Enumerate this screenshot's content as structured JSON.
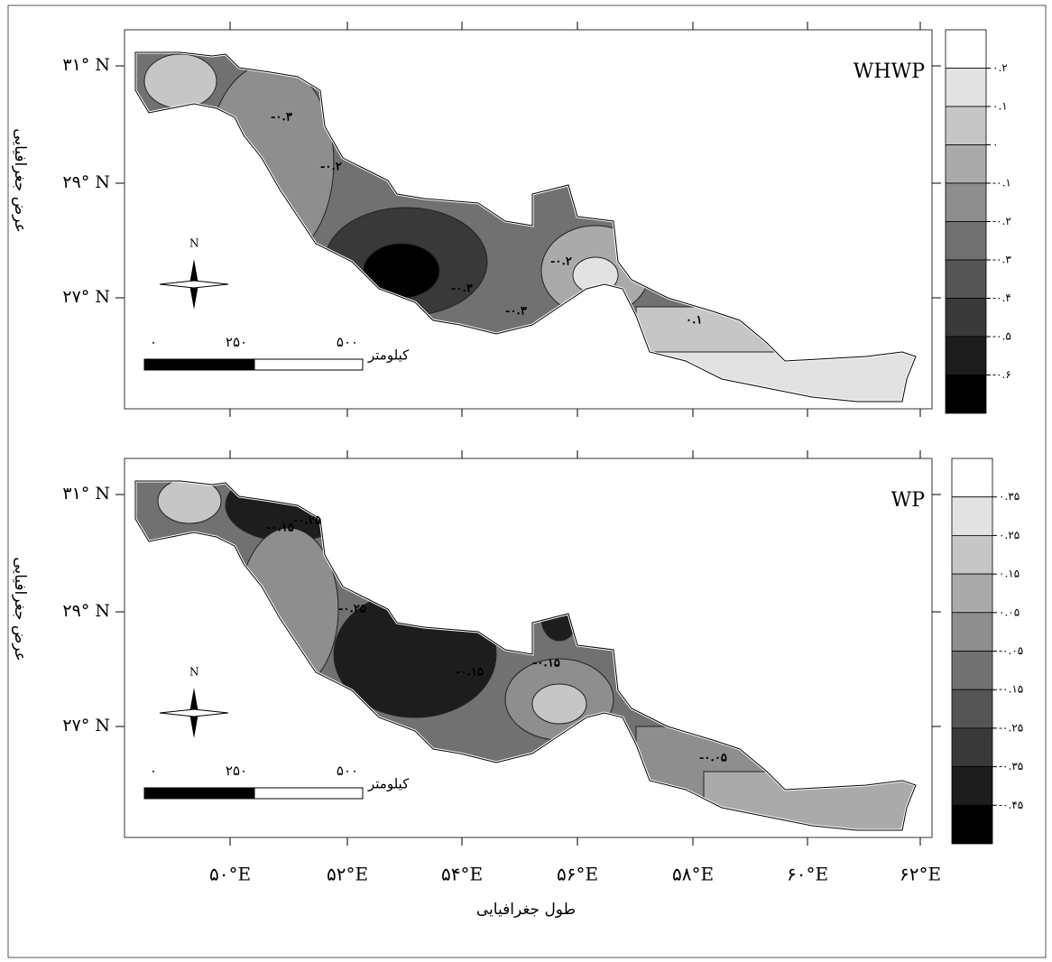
{
  "axes": {
    "y_title": "عرض جغرافیایی",
    "x_title": "طول جغرافیایی",
    "x_ticks": [
      "۵۰°E",
      "۵۲°E",
      "۵۴°E",
      "۵۶°E",
      "۵۸°E",
      "۶۰°E",
      "۶۲°E"
    ],
    "y_ticks": [
      "۳۱° N",
      "۲۹° N",
      "۲۷° N"
    ]
  },
  "panels": [
    {
      "title": "WHWP",
      "legend": {
        "labels": [
          "۰.۲",
          "۰.۱",
          "۰",
          "-۰.۱",
          "-۰.۲",
          "-۰.۳",
          "-۰.۴",
          "-۰.۵",
          "-۰.۶"
        ],
        "colors": [
          "#ffffff",
          "#e2e2e2",
          "#c6c6c6",
          "#aaaaaa",
          "#8e8e8e",
          "#717171",
          "#555555",
          "#393939",
          "#1d1d1d",
          "#000000"
        ]
      },
      "contour_labels": [
        "-۰.۳",
        "-۰.۲",
        "-۰.۳",
        "-۰.۳",
        "-۰.۲",
        "۰.۱"
      ],
      "scale": {
        "labels": [
          "۰",
          "۲۵۰",
          "۵۰۰"
        ],
        "unit": "کیلومتر"
      },
      "compass": "N"
    },
    {
      "title": "WP",
      "legend": {
        "labels": [
          "۰.۳۵",
          "۰.۲۵",
          "۰.۱۵",
          "۰.۰۵",
          "-۰.۰۵",
          "-۰.۱۵",
          "-۰.۲۵",
          "-۰.۳۵",
          "-۰.۴۵"
        ],
        "colors": [
          "#ffffff",
          "#e2e2e2",
          "#c6c6c6",
          "#aaaaaa",
          "#8e8e8e",
          "#717171",
          "#555555",
          "#393939",
          "#1d1d1d",
          "#000000"
        ]
      },
      "contour_labels": [
        "-۰.۲۵",
        "-۰.۱۵",
        "-۰.۲۵",
        "-۰.۱۵",
        "-۰.۱۵",
        "-۰.۰۵"
      ],
      "scale": {
        "labels": [
          "۰",
          "۲۵۰",
          "۵۰۰"
        ],
        "unit": "کیلومتر"
      },
      "compass": "N"
    }
  ]
}
